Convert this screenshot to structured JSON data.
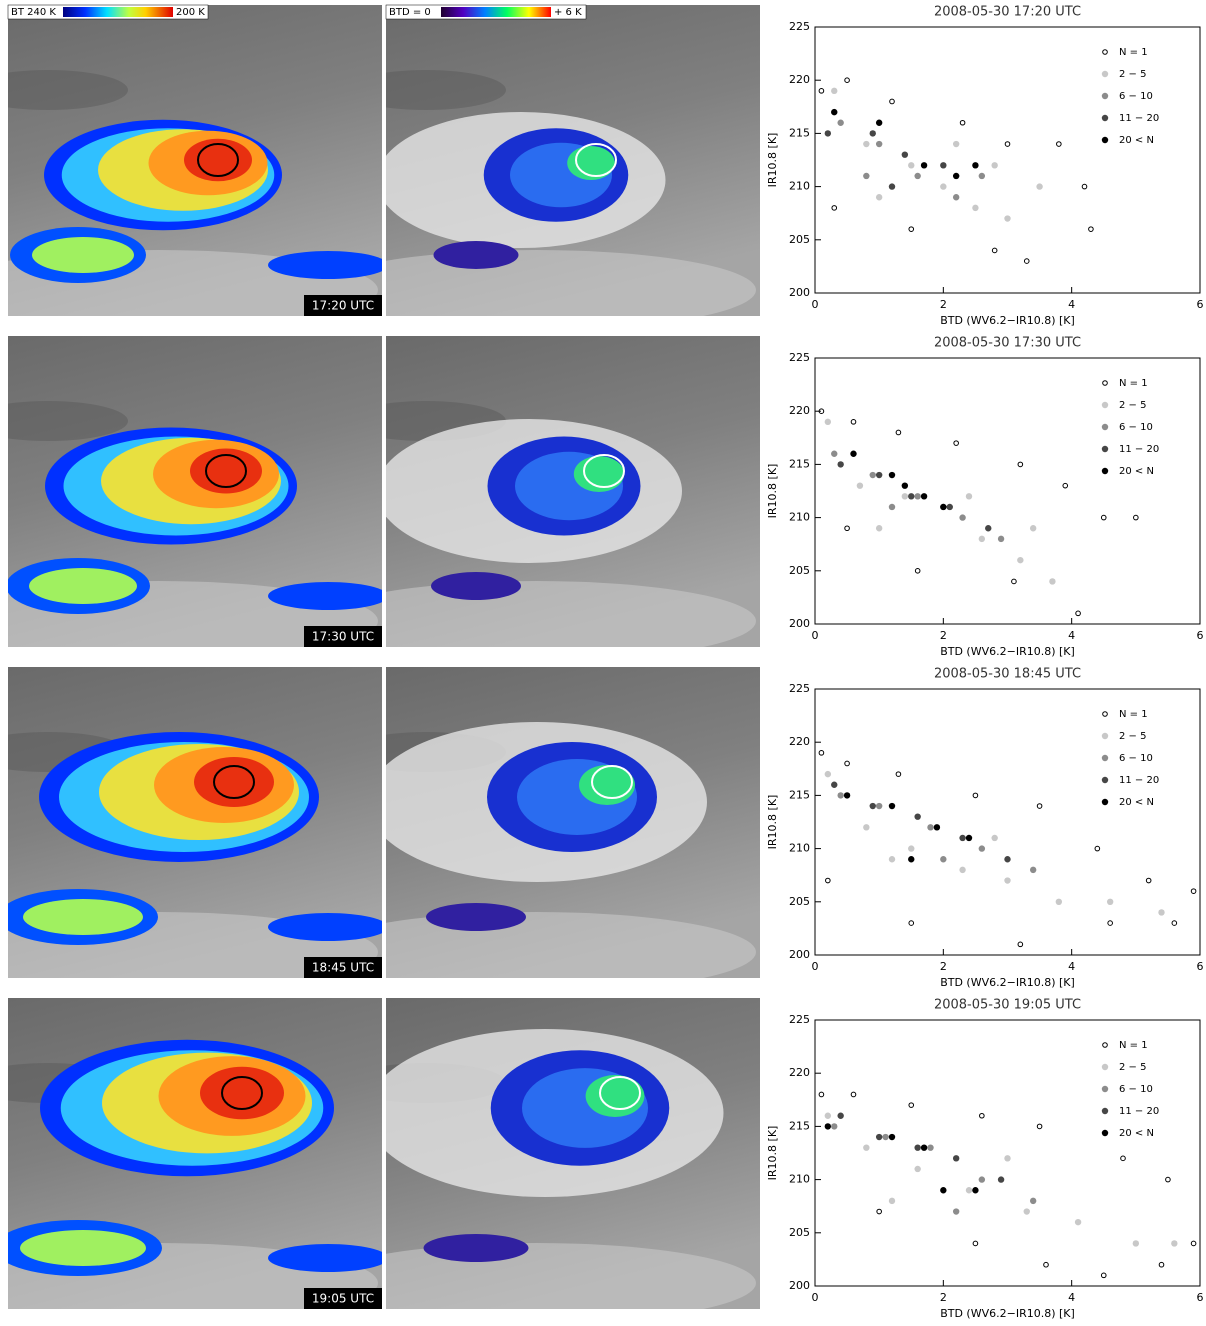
{
  "colorbars": [
    {
      "left": "BT 240 K",
      "right": "200 K"
    },
    {
      "left": "BTD = 0",
      "right": "+ 6 K"
    }
  ],
  "time_labels": [
    "17:20 UTC",
    "17:30 UTC",
    "18:45 UTC",
    "19:05 UTC"
  ],
  "chart_data": [
    {
      "type": "scatter",
      "title": "2008-05-30   17:20 UTC",
      "x_label": "BTD (WV6.2−IR10.8) [K]",
      "y_label": "IR10.8 [K]",
      "xlim": [
        0,
        6
      ],
      "ylim": [
        200,
        225
      ],
      "xticks": [
        0,
        2,
        4,
        6
      ],
      "yticks": [
        200,
        205,
        210,
        215,
        220,
        225
      ],
      "legend": "upper right",
      "series": [
        {
          "name": "N =  1",
          "color": "#000000",
          "marker": "open",
          "x": [
            0.1,
            0.5,
            1.2,
            2.3,
            3.0,
            3.8,
            4.2,
            4.3,
            2.8,
            1.5,
            0.3,
            3.3
          ],
          "y": [
            219,
            220,
            218,
            216,
            214,
            214,
            210,
            206,
            204,
            206,
            208,
            203
          ]
        },
        {
          "name": "2 −  5",
          "color": "#c8c8c8",
          "marker": "filled",
          "x": [
            0.3,
            0.8,
            1.5,
            2.0,
            2.5,
            3.0,
            2.2,
            3.5,
            1.0,
            2.8
          ],
          "y": [
            219,
            214,
            212,
            210,
            208,
            207,
            214,
            210,
            209,
            212
          ]
        },
        {
          "name": "6 − 10",
          "color": "#8c8c8c",
          "marker": "filled",
          "x": [
            0.4,
            1.0,
            1.6,
            2.2,
            0.8,
            2.6
          ],
          "y": [
            216,
            214,
            211,
            209,
            211,
            211
          ]
        },
        {
          "name": "11 − 20",
          "color": "#464646",
          "marker": "filled",
          "x": [
            0.2,
            0.9,
            1.4,
            2.0,
            1.2
          ],
          "y": [
            215,
            215,
            213,
            212,
            210
          ]
        },
        {
          "name": "20 <  N",
          "color": "#000000",
          "marker": "filled",
          "x": [
            0.3,
            1.0,
            1.7,
            2.2,
            2.5
          ],
          "y": [
            217,
            216,
            212,
            211,
            212
          ]
        }
      ]
    },
    {
      "type": "scatter",
      "title": "2008-05-30   17:30 UTC",
      "x_label": "BTD (WV6.2−IR10.8) [K]",
      "y_label": "IR10.8 [K]",
      "xlim": [
        0,
        6
      ],
      "ylim": [
        200,
        225
      ],
      "xticks": [
        0,
        2,
        4,
        6
      ],
      "yticks": [
        200,
        205,
        210,
        215,
        220,
        225
      ],
      "legend": "upper right",
      "series": [
        {
          "name": "N =  1",
          "color": "#000000",
          "marker": "open",
          "x": [
            0.1,
            0.6,
            1.3,
            2.2,
            3.2,
            3.9,
            4.5,
            5.0,
            4.1,
            3.1,
            1.6,
            0.5
          ],
          "y": [
            220,
            219,
            218,
            217,
            215,
            213,
            210,
            210,
            201,
            204,
            205,
            209
          ]
        },
        {
          "name": "2 −  5",
          "color": "#c8c8c8",
          "marker": "filled",
          "x": [
            0.2,
            0.7,
            1.4,
            2.0,
            2.6,
            3.2,
            3.7,
            1.0,
            2.4,
            3.4
          ],
          "y": [
            219,
            213,
            212,
            211,
            208,
            206,
            204,
            209,
            212,
            209
          ]
        },
        {
          "name": "6 − 10",
          "color": "#8c8c8c",
          "marker": "filled",
          "x": [
            0.3,
            0.9,
            1.6,
            2.3,
            2.9,
            1.2
          ],
          "y": [
            216,
            214,
            212,
            210,
            208,
            211
          ]
        },
        {
          "name": "11 − 20",
          "color": "#464646",
          "marker": "filled",
          "x": [
            0.4,
            1.0,
            1.5,
            2.1,
            2.7
          ],
          "y": [
            215,
            214,
            212,
            211,
            209
          ]
        },
        {
          "name": "20 <  N",
          "color": "#000000",
          "marker": "filled",
          "x": [
            0.6,
            1.2,
            1.7,
            2.0,
            1.4
          ],
          "y": [
            216,
            214,
            212,
            211,
            213
          ]
        }
      ]
    },
    {
      "type": "scatter",
      "title": "2008-05-30   18:45 UTC",
      "x_label": "BTD (WV6.2−IR10.8) [K]",
      "y_label": "IR10.8 [K]",
      "xlim": [
        0,
        6
      ],
      "ylim": [
        200,
        225
      ],
      "xticks": [
        0,
        2,
        4,
        6
      ],
      "yticks": [
        200,
        205,
        210,
        215,
        220,
        225
      ],
      "legend": "upper right",
      "series": [
        {
          "name": "N =  1",
          "color": "#000000",
          "marker": "open",
          "x": [
            0.1,
            0.5,
            1.3,
            2.5,
            3.5,
            4.4,
            5.2,
            5.9,
            5.6,
            4.6,
            3.2,
            1.5,
            0.2
          ],
          "y": [
            219,
            218,
            217,
            215,
            214,
            210,
            207,
            206,
            203,
            203,
            201,
            203,
            207
          ]
        },
        {
          "name": "2 −  5",
          "color": "#c8c8c8",
          "marker": "filled",
          "x": [
            0.2,
            0.8,
            1.5,
            2.3,
            3.0,
            3.8,
            4.6,
            5.4,
            1.2,
            2.8
          ],
          "y": [
            217,
            212,
            210,
            208,
            207,
            205,
            205,
            204,
            209,
            211
          ]
        },
        {
          "name": "6 − 10",
          "color": "#8c8c8c",
          "marker": "filled",
          "x": [
            0.4,
            1.0,
            1.8,
            2.6,
            3.4,
            2.0
          ],
          "y": [
            215,
            214,
            212,
            210,
            208,
            209
          ]
        },
        {
          "name": "11 − 20",
          "color": "#464646",
          "marker": "filled",
          "x": [
            0.3,
            0.9,
            1.6,
            2.3,
            3.0
          ],
          "y": [
            216,
            214,
            213,
            211,
            209
          ]
        },
        {
          "name": "20 <  N",
          "color": "#000000",
          "marker": "filled",
          "x": [
            0.5,
            1.2,
            1.9,
            2.4,
            1.5
          ],
          "y": [
            215,
            214,
            212,
            211,
            209
          ]
        }
      ]
    },
    {
      "type": "scatter",
      "title": "2008-05-30   19:05 UTC",
      "x_label": "BTD (WV6.2−IR10.8) [K]",
      "y_label": "IR10.8 [K]",
      "xlim": [
        0,
        6
      ],
      "ylim": [
        200,
        225
      ],
      "xticks": [
        0,
        2,
        4,
        6
      ],
      "yticks": [
        200,
        205,
        210,
        215,
        220,
        225
      ],
      "legend": "upper right",
      "series": [
        {
          "name": "N =  1",
          "color": "#000000",
          "marker": "open",
          "x": [
            0.1,
            0.6,
            1.5,
            2.6,
            3.5,
            4.8,
            5.5,
            5.9,
            5.4,
            4.5,
            3.6,
            2.5,
            1.0
          ],
          "y": [
            218,
            218,
            217,
            216,
            215,
            212,
            210,
            204,
            202,
            201,
            202,
            204,
            207
          ]
        },
        {
          "name": "2 −  5",
          "color": "#c8c8c8",
          "marker": "filled",
          "x": [
            0.2,
            0.8,
            1.6,
            2.4,
            3.3,
            4.1,
            5.0,
            5.6,
            1.2,
            3.0
          ],
          "y": [
            216,
            213,
            211,
            209,
            207,
            206,
            204,
            204,
            208,
            212
          ]
        },
        {
          "name": "6 − 10",
          "color": "#8c8c8c",
          "marker": "filled",
          "x": [
            0.3,
            1.1,
            1.8,
            2.6,
            3.4,
            2.2
          ],
          "y": [
            215,
            214,
            213,
            210,
            208,
            207
          ]
        },
        {
          "name": "11 − 20",
          "color": "#464646",
          "marker": "filled",
          "x": [
            0.4,
            1.0,
            1.6,
            2.2,
            2.9
          ],
          "y": [
            216,
            214,
            213,
            212,
            210
          ]
        },
        {
          "name": "20 <  N",
          "color": "#000000",
          "marker": "filled",
          "x": [
            0.2,
            1.2,
            1.7,
            2.0,
            2.5
          ],
          "y": [
            215,
            214,
            213,
            209,
            209
          ]
        }
      ]
    }
  ]
}
